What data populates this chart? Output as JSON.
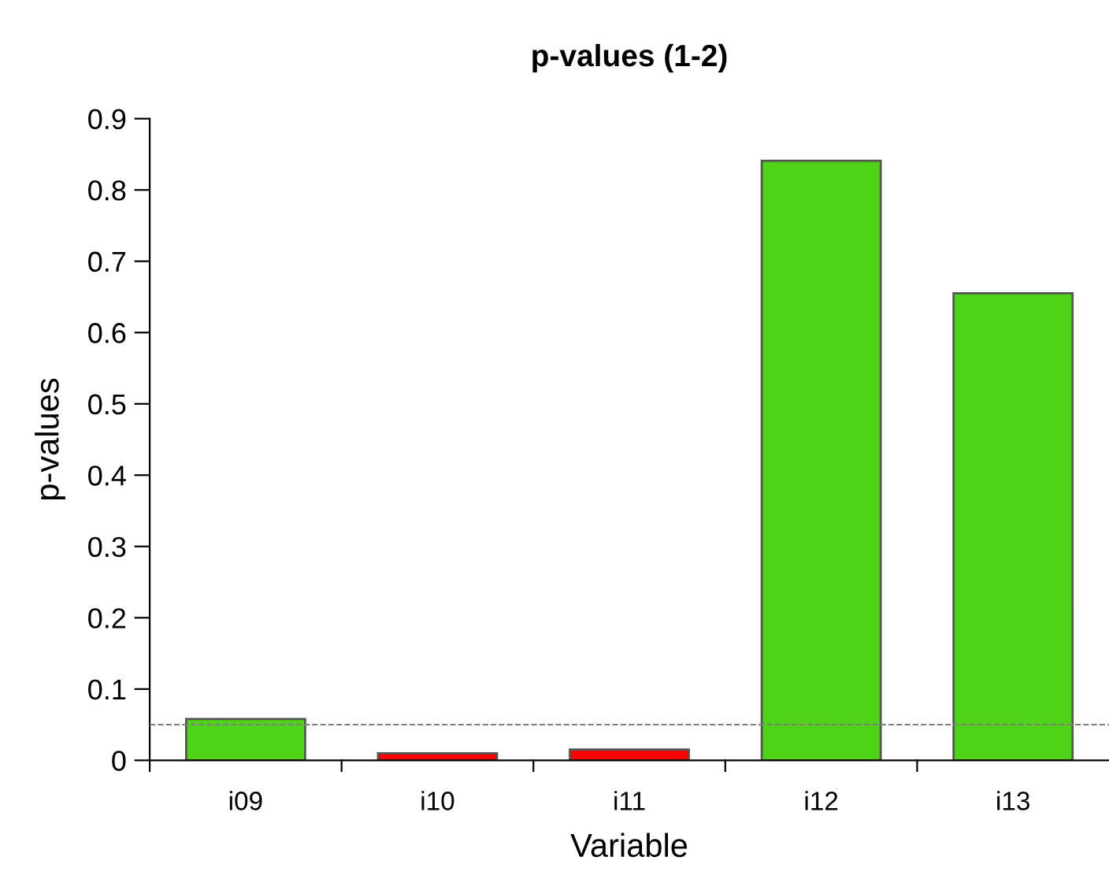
{
  "chart_data": {
    "type": "bar",
    "title": "p-values (1-2)",
    "xlabel": "Variable",
    "ylabel": "p-values",
    "categories": [
      "i09",
      "i10",
      "i11",
      "i12",
      "i13"
    ],
    "values": [
      0.058,
      0.01,
      0.015,
      0.841,
      0.655
    ],
    "colors": [
      "#4fd317",
      "#ff0000",
      "#ff0000",
      "#4fd317",
      "#4fd317"
    ],
    "ylim": [
      0,
      0.9
    ],
    "yticks": [
      0,
      0.1,
      0.2,
      0.3,
      0.4,
      0.5,
      0.6,
      0.7,
      0.8,
      0.9
    ],
    "ref_lines": [
      {
        "axis": "y",
        "value": 0.05,
        "color": "#808080",
        "line_style": "dashed"
      }
    ],
    "grid": false,
    "legend": false
  }
}
